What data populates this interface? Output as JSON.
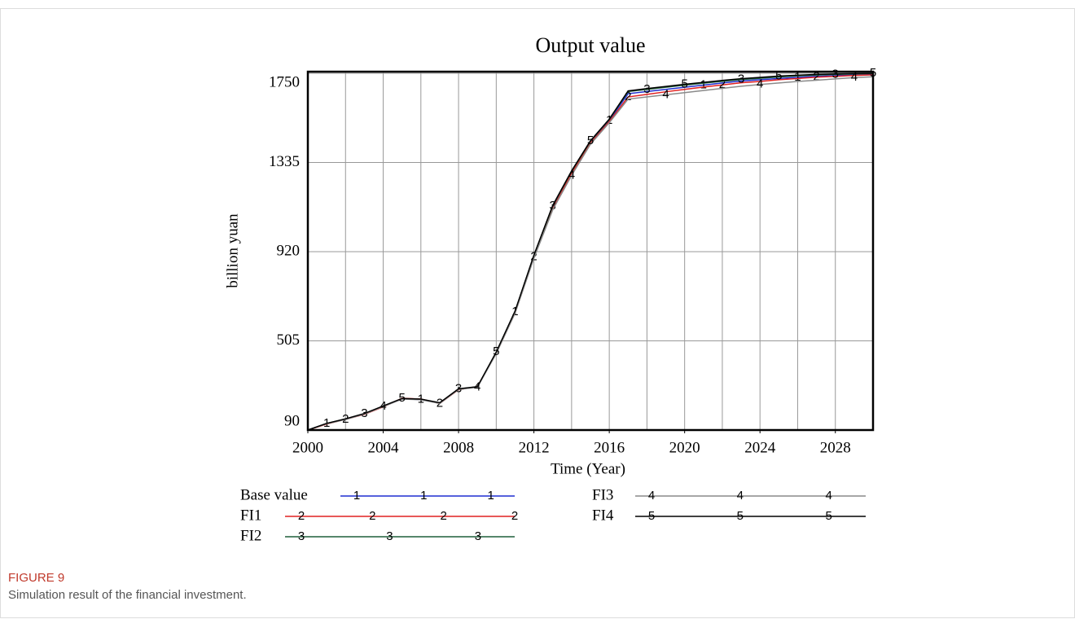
{
  "chart_data": {
    "type": "line",
    "title": "Output value",
    "xlabel": "Time (Year)",
    "ylabel": "billion yuan",
    "x": [
      2000,
      2001,
      2002,
      2003,
      2004,
      2005,
      2006,
      2007,
      2008,
      2009,
      2010,
      2011,
      2012,
      2013,
      2014,
      2015,
      2016,
      2017,
      2018,
      2019,
      2020,
      2021,
      2022,
      2023,
      2024,
      2025,
      2026,
      2027,
      2028,
      2029,
      2030
    ],
    "series": [
      {
        "name": "Base value",
        "marker": "1",
        "color": "#1f2fd0",
        "values": [
          90,
          120,
          140,
          165,
          200,
          235,
          232,
          215,
          280,
          290,
          450,
          640,
          900,
          1130,
          1290,
          1430,
          1530,
          1655,
          1665,
          1675,
          1685,
          1695,
          1705,
          1714,
          1720,
          1726,
          1731,
          1736,
          1739,
          1742,
          1744
        ]
      },
      {
        "name": "FI1",
        "marker": "2",
        "color": "#e02020",
        "values": [
          90,
          118,
          140,
          163,
          198,
          238,
          234,
          214,
          278,
          292,
          448,
          636,
          895,
          1120,
          1285,
          1425,
          1525,
          1640,
          1652,
          1664,
          1675,
          1686,
          1696,
          1706,
          1712,
          1720,
          1726,
          1732,
          1736,
          1740,
          1743
        ]
      },
      {
        "name": "FI2",
        "marker": "3",
        "color": "#1e5e3a",
        "values": [
          90,
          121,
          141,
          166,
          201,
          236,
          233,
          216,
          281,
          291,
          452,
          642,
          902,
          1133,
          1294,
          1434,
          1535,
          1665,
          1675,
          1685,
          1695,
          1704,
          1713,
          1721,
          1727,
          1733,
          1738,
          1742,
          1745,
          1747,
          1749
        ]
      },
      {
        "name": "FI3",
        "marker": "4",
        "color": "#8a8a8a",
        "values": [
          90,
          119,
          139,
          164,
          199,
          234,
          231,
          214,
          279,
          289,
          446,
          634,
          890,
          1115,
          1275,
          1420,
          1520,
          1630,
          1640,
          1650,
          1660,
          1670,
          1680,
          1690,
          1698,
          1705,
          1712,
          1718,
          1724,
          1730,
          1734
        ]
      },
      {
        "name": "FI4",
        "marker": "5",
        "color": "#000000",
        "values": [
          90,
          121,
          142,
          167,
          202,
          237,
          234,
          217,
          282,
          292,
          453,
          644,
          904,
          1136,
          1296,
          1436,
          1537,
          1668,
          1679,
          1689,
          1699,
          1708,
          1717,
          1725,
          1731,
          1737,
          1741,
          1745,
          1747,
          1749,
          1750
        ]
      }
    ],
    "xlim": [
      2000,
      2030
    ],
    "xticks": [
      2000,
      2004,
      2008,
      2012,
      2016,
      2020,
      2024,
      2028
    ],
    "xgrid": [
      2002,
      2004,
      2006,
      2008,
      2010,
      2012,
      2014,
      2016,
      2018,
      2020,
      2022,
      2024,
      2026,
      2028
    ],
    "ylim": [
      90,
      1750
    ],
    "yticks": [
      90,
      505,
      920,
      1335,
      1750
    ],
    "grid": true
  },
  "figure_label": "FIGURE 9",
  "caption": "Simulation result of the financial investment."
}
